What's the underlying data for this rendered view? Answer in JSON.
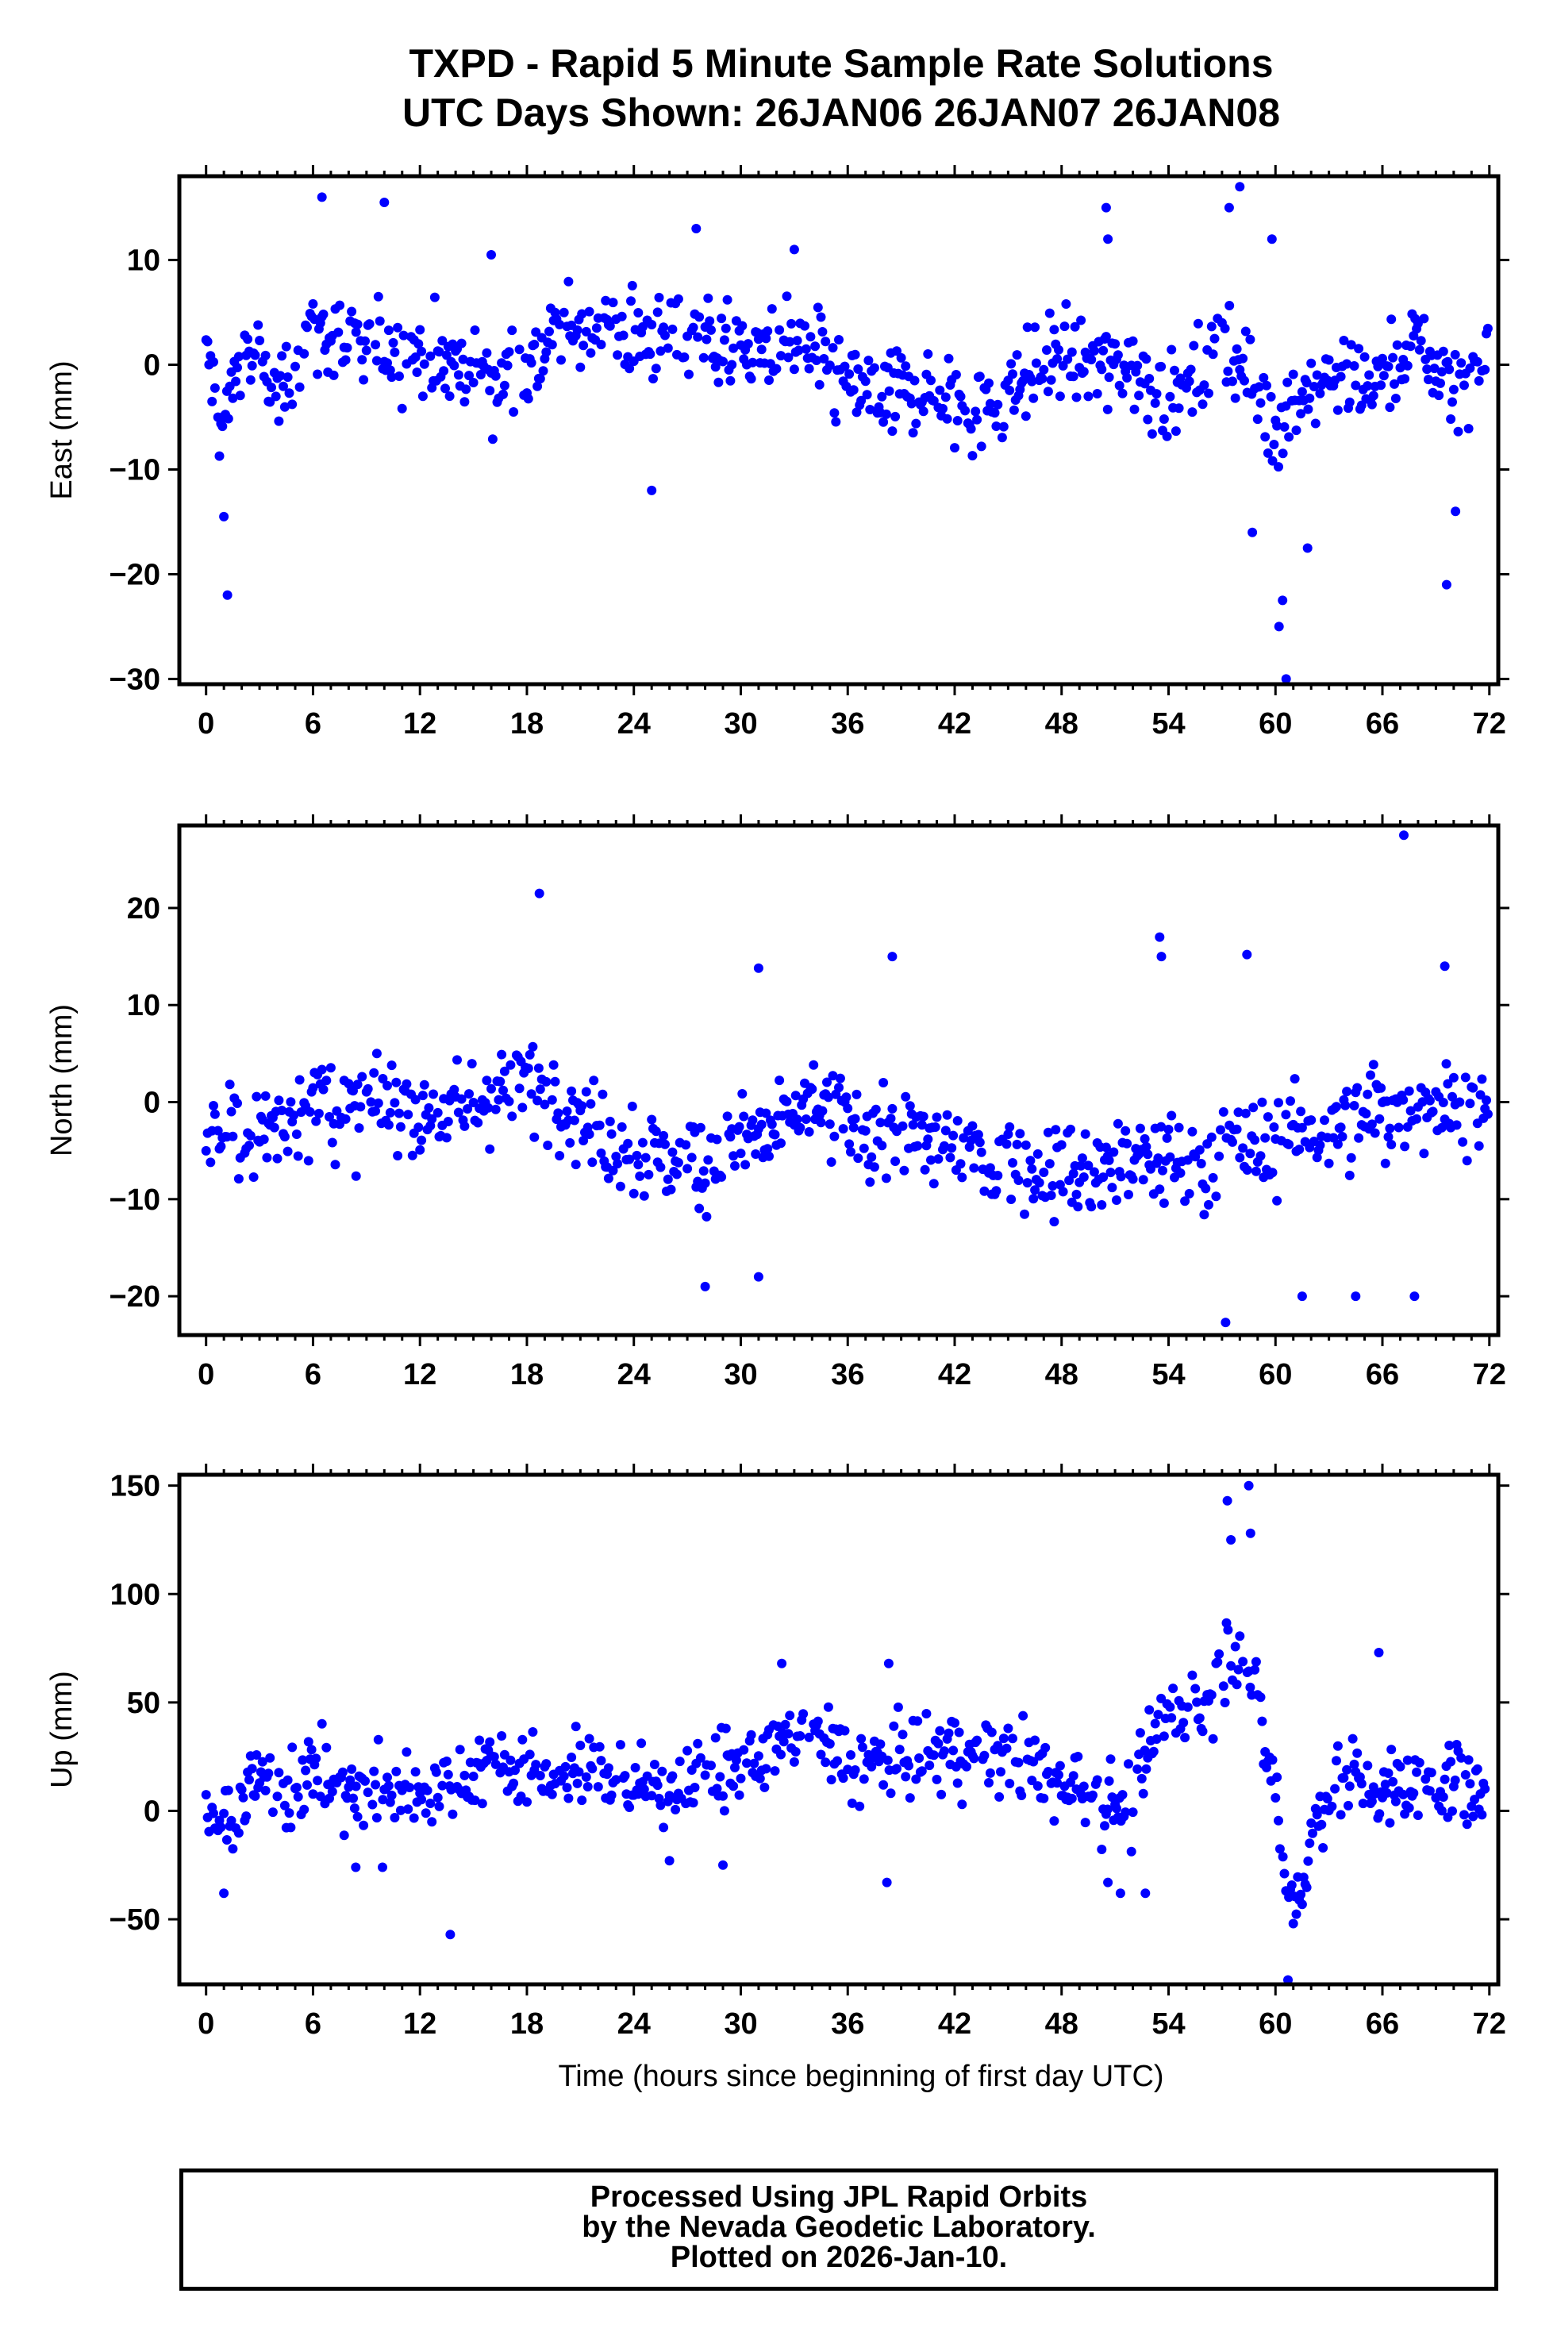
{
  "title": "TXPD - Rapid 5 Minute Sample Rate Solutions",
  "subtitle": "UTC Days Shown:  26JAN06 26JAN07 26JAN08",
  "footer": {
    "line1": "Processed Using JPL Rapid Orbits",
    "line2": "by the Nevada Geodetic Laboratory.",
    "line3": "Plotted on 2026-Jan-10."
  },
  "colors": {
    "points": "#0000ff"
  },
  "chart_data": [
    {
      "type": "scatter",
      "ylabel": "East (mm)",
      "xlabel": "",
      "xlim": [
        -1.5,
        72.5
      ],
      "ylim": [
        -30.5,
        18
      ],
      "xticks": [
        0,
        6,
        12,
        18,
        24,
        30,
        36,
        42,
        48,
        54,
        60,
        66,
        72
      ],
      "yticks": [
        10,
        0,
        -10,
        -20,
        -30
      ],
      "anchors": {
        "x": [
          0,
          1,
          2,
          3,
          4,
          6,
          8,
          10,
          12,
          14,
          16,
          18,
          20,
          22,
          24,
          26,
          28,
          30,
          32,
          34,
          36,
          38,
          40,
          42,
          44,
          46,
          48,
          50,
          52,
          54,
          56,
          57,
          58,
          59,
          60,
          61,
          62,
          64,
          66,
          68,
          70,
          72
        ],
        "y": [
          1,
          -6,
          2,
          0,
          -3,
          4,
          1,
          2,
          1,
          0,
          -1,
          0,
          3,
          4,
          3,
          2,
          3,
          1,
          2,
          1,
          -2,
          -3,
          -2,
          -4,
          -4,
          -1,
          1,
          0,
          0,
          -3,
          -1,
          3,
          0,
          -3,
          -6,
          -3,
          -2,
          -2,
          -1,
          2,
          -2,
          0
        ]
      },
      "spread": 3.0,
      "outliers": [
        [
          1.2,
          -22
        ],
        [
          1.0,
          -14.5
        ],
        [
          6.5,
          16
        ],
        [
          10,
          15.5
        ],
        [
          27.5,
          13
        ],
        [
          25,
          -12
        ],
        [
          50.5,
          15
        ],
        [
          50.6,
          12
        ],
        [
          57.4,
          15
        ],
        [
          58,
          17
        ],
        [
          59.8,
          12
        ],
        [
          58.7,
          -16
        ],
        [
          60.2,
          -25
        ],
        [
          60.4,
          -22.5
        ],
        [
          60.6,
          -30
        ],
        [
          61.8,
          -17.5
        ],
        [
          69.6,
          -21
        ],
        [
          70.1,
          -14
        ],
        [
          33,
          11
        ],
        [
          16,
          10.5
        ]
      ]
    },
    {
      "type": "scatter",
      "ylabel": "North (mm)",
      "xlabel": "",
      "xlim": [
        -1.5,
        72.5
      ],
      "ylim": [
        -24,
        28.5
      ],
      "xticks": [
        0,
        6,
        12,
        18,
        24,
        30,
        36,
        42,
        48,
        54,
        60,
        66,
        72
      ],
      "yticks": [
        20,
        10,
        0,
        -10,
        -20
      ],
      "anchors": {
        "x": [
          0,
          2,
          4,
          6,
          8,
          10,
          12,
          14,
          16,
          18,
          20,
          22,
          24,
          26,
          28,
          30,
          32,
          34,
          36,
          38,
          40,
          42,
          44,
          46,
          48,
          50,
          52,
          54,
          56,
          58,
          60,
          62,
          64,
          66,
          68,
          70,
          72
        ],
        "y": [
          -2,
          -4,
          -2,
          1,
          -2,
          0,
          -1,
          -1,
          1,
          2,
          1,
          -3,
          -5,
          -6,
          -6,
          -4,
          -3,
          0,
          -2,
          -3,
          -4,
          -5,
          -6,
          -6,
          -7,
          -7,
          -6,
          -6,
          -6,
          -5,
          -4,
          -3,
          -2,
          -1,
          0,
          0,
          -1
        ]
      },
      "spread": 3.5,
      "outliers": [
        [
          18.7,
          21.5
        ],
        [
          31,
          13.8
        ],
        [
          38.5,
          15
        ],
        [
          53.5,
          17
        ],
        [
          53.6,
          15
        ],
        [
          58.4,
          15.2
        ],
        [
          67.2,
          27.5
        ],
        [
          69.5,
          14
        ],
        [
          57.2,
          -22.7
        ],
        [
          28,
          -19
        ],
        [
          31,
          -18
        ],
        [
          67.8,
          -20
        ],
        [
          61.5,
          -20
        ],
        [
          64.5,
          -20
        ]
      ]
    },
    {
      "type": "scatter",
      "ylabel": "Up (mm)",
      "xlabel": "Time (hours since beginning of first day UTC)",
      "xlim": [
        -1.5,
        72.5
      ],
      "ylim": [
        -80,
        155
      ],
      "xticks": [
        0,
        6,
        12,
        18,
        24,
        30,
        36,
        42,
        48,
        54,
        60,
        66,
        72
      ],
      "yticks": [
        150,
        100,
        50,
        0,
        -50
      ],
      "anchors": {
        "x": [
          0,
          1,
          2,
          3,
          4,
          6,
          8,
          10,
          12,
          14,
          16,
          18,
          20,
          22,
          24,
          26,
          28,
          30,
          32,
          34,
          36,
          38,
          40,
          42,
          44,
          46,
          48,
          50,
          52,
          53,
          54,
          55,
          56,
          57,
          58,
          59,
          60,
          60.5,
          61.5,
          62.5,
          64,
          66,
          68,
          70,
          72
        ],
        "y": [
          -5,
          -10,
          5,
          15,
          10,
          20,
          8,
          10,
          10,
          12,
          25,
          18,
          15,
          20,
          10,
          12,
          15,
          20,
          30,
          38,
          20,
          22,
          25,
          28,
          25,
          22,
          15,
          8,
          0,
          30,
          45,
          50,
          45,
          70,
          80,
          45,
          10,
          -35,
          -35,
          5,
          15,
          10,
          10,
          15,
          5
        ]
      },
      "spread": 13,
      "outliers": [
        [
          13.7,
          -57
        ],
        [
          1.0,
          -38
        ],
        [
          57.3,
          143
        ],
        [
          58.5,
          150
        ],
        [
          58.6,
          128
        ],
        [
          57.5,
          125
        ],
        [
          60.7,
          -78
        ],
        [
          65.8,
          73
        ],
        [
          38.3,
          68
        ],
        [
          32.3,
          68
        ],
        [
          38.2,
          -33
        ],
        [
          50.6,
          -33
        ],
        [
          51.3,
          -38
        ],
        [
          52.7,
          -38
        ],
        [
          29.0,
          -25
        ],
        [
          26.0,
          -23
        ],
        [
          8.4,
          -26
        ],
        [
          9.9,
          -26
        ]
      ]
    }
  ]
}
